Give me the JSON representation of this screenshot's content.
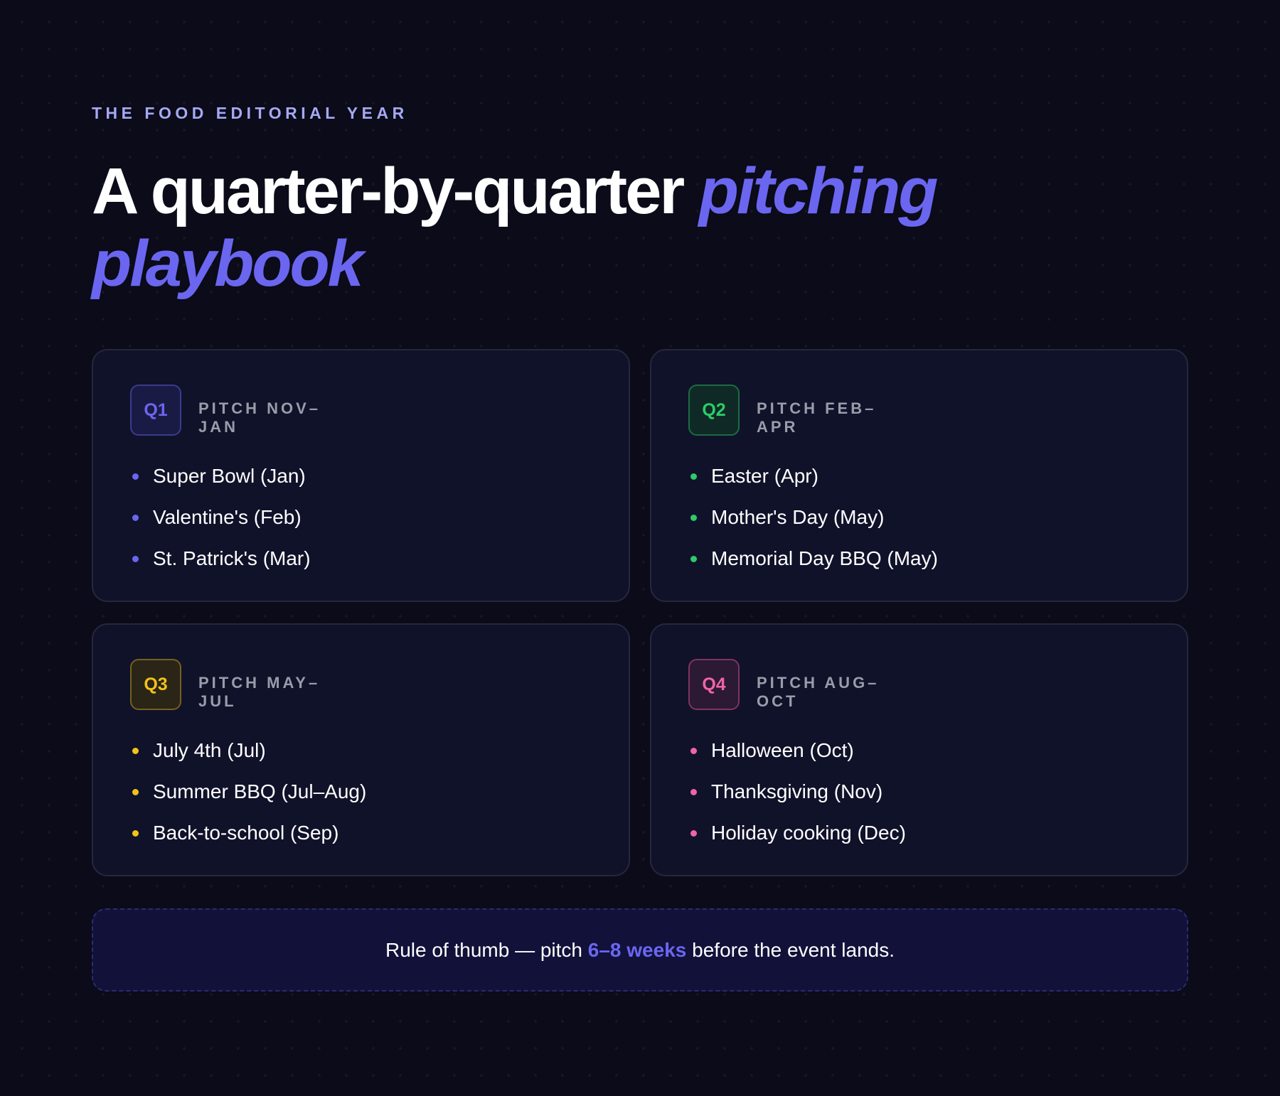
{
  "eyebrow": "THE FOOD EDITORIAL YEAR",
  "headline": {
    "plain": "A quarter-by-quarter ",
    "accent": "pitching playbook"
  },
  "quarters": [
    {
      "badge": "Q1",
      "pitch": "PITCH NOV–JAN",
      "color": "#6b66f0",
      "events": [
        "Super Bowl (Jan)",
        "Valentine's (Feb)",
        "St. Patrick's (Mar)"
      ]
    },
    {
      "badge": "Q2",
      "pitch": "PITCH FEB–APR",
      "color": "#2ecb6a",
      "events": [
        "Easter (Apr)",
        "Mother's Day (May)",
        "Memorial Day BBQ (May)"
      ]
    },
    {
      "badge": "Q3",
      "pitch": "PITCH MAY–JUL",
      "color": "#f2c219",
      "events": [
        "July 4th (Jul)",
        "Summer BBQ (Jul–Aug)",
        "Back-to-school (Sep)"
      ]
    },
    {
      "badge": "Q4",
      "pitch": "PITCH AUG–OCT",
      "color": "#ef65a6",
      "events": [
        "Halloween (Oct)",
        "Thanksgiving (Nov)",
        "Holiday cooking (Dec)"
      ]
    }
  ],
  "rule_of_thumb": {
    "before": "Rule of thumb — pitch ",
    "highlight": "6–8 weeks",
    "after": " before the event lands."
  },
  "colors": {
    "background": "#0b0b19",
    "card": "#10122a",
    "accent": "#6b66f0",
    "eyebrow": "#a5a9f5"
  }
}
